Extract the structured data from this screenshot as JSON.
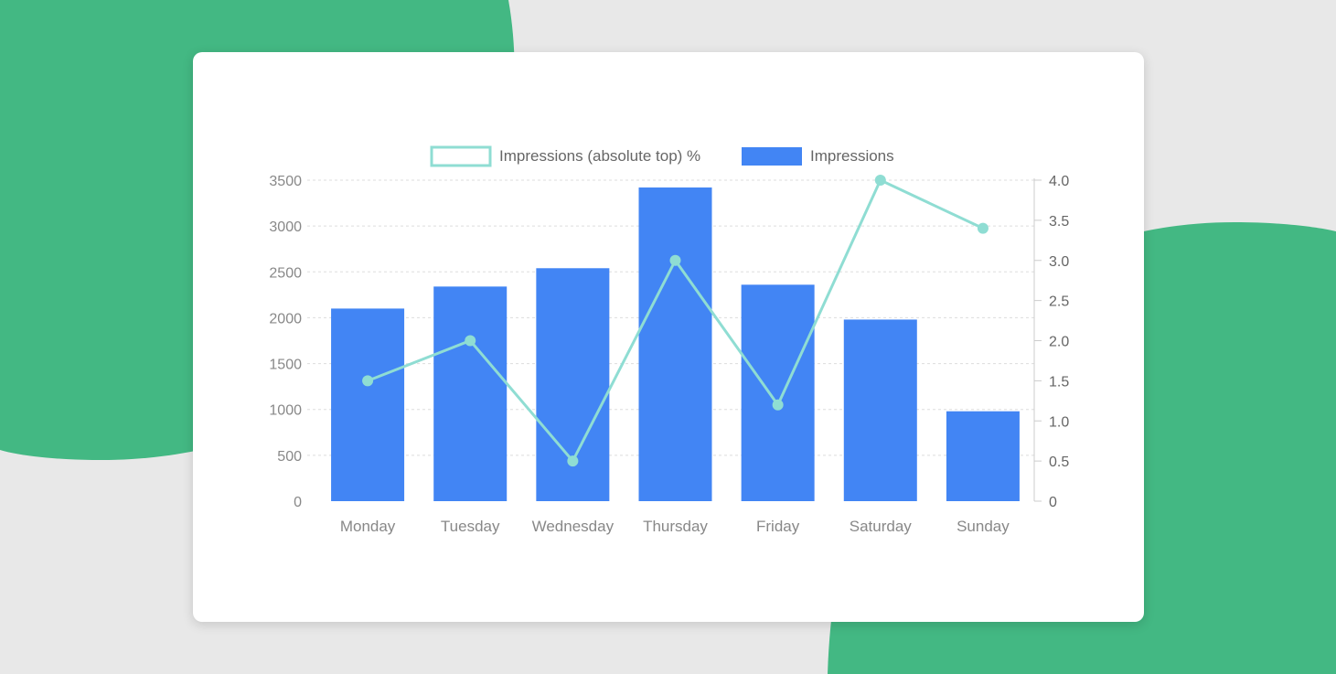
{
  "chart_data": {
    "type": "bar",
    "categories": [
      "Monday",
      "Tuesday",
      "Wednesday",
      "Thursday",
      "Friday",
      "Saturday",
      "Sunday"
    ],
    "series": [
      {
        "name": "Impressions (absolute top) %",
        "type": "line",
        "axis": "right",
        "color": "#8fddd3",
        "values": [
          1.5,
          2.0,
          0.5,
          3.0,
          1.2,
          4.0,
          3.4
        ]
      },
      {
        "name": "Impressions",
        "type": "bar",
        "axis": "left",
        "color": "#4285f4",
        "values": [
          2100,
          2340,
          2540,
          3420,
          2360,
          1980,
          980
        ]
      }
    ],
    "y_left": {
      "range": [
        0,
        3500
      ],
      "ticks": [
        "0",
        "500",
        "1000",
        "1500",
        "2000",
        "2500",
        "3000",
        "3500"
      ]
    },
    "y_right": {
      "range": [
        0,
        4.0
      ],
      "ticks": [
        "0",
        "0.5",
        "1.0",
        "1.5",
        "2.0",
        "2.5",
        "3.0",
        "3.5",
        "4.0"
      ]
    },
    "grid": true,
    "legend": "top"
  }
}
